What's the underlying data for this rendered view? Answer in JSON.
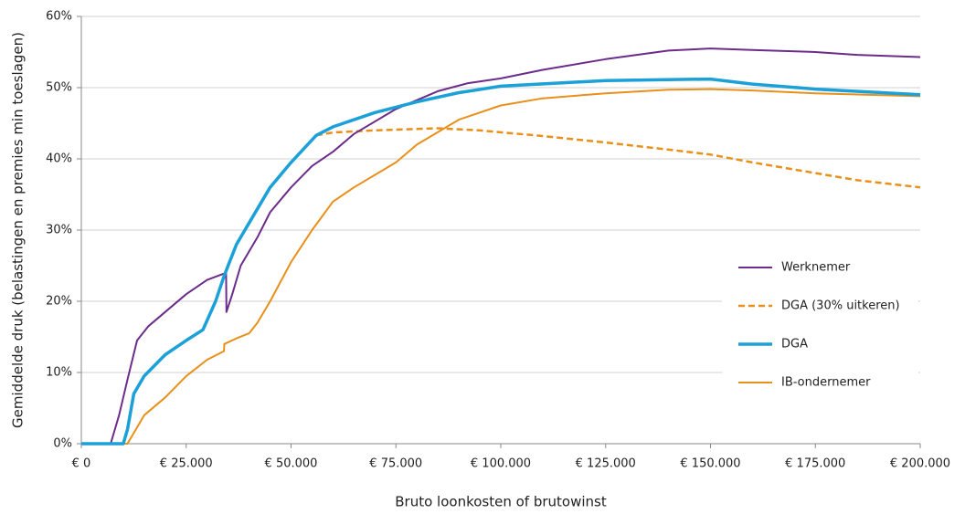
{
  "chart_data": {
    "type": "line",
    "x_label": "Bruto loonkosten of brutowinst",
    "y_label": "Gemiddelde druk (belastingen en premies min toeslagen)",
    "xlim": [
      0,
      200000
    ],
    "ylim": [
      0,
      60
    ],
    "xticks": [
      {
        "value": 0,
        "label": "€ 0"
      },
      {
        "value": 25000,
        "label": "€ 25.000"
      },
      {
        "value": 50000,
        "label": "€ 50.000"
      },
      {
        "value": 75000,
        "label": "€ 75.000"
      },
      {
        "value": 100000,
        "label": "€ 100.000"
      },
      {
        "value": 125000,
        "label": "€ 125.000"
      },
      {
        "value": 150000,
        "label": "€ 150.000"
      },
      {
        "value": 175000,
        "label": "€ 175.000"
      },
      {
        "value": 200000,
        "label": "€ 200.000"
      }
    ],
    "yticks": [
      {
        "value": 0,
        "label": "0%"
      },
      {
        "value": 10,
        "label": "10%"
      },
      {
        "value": 20,
        "label": "20%"
      },
      {
        "value": 30,
        "label": "30%"
      },
      {
        "value": 40,
        "label": "40%"
      },
      {
        "value": 50,
        "label": "50%"
      },
      {
        "value": 60,
        "label": "60%"
      }
    ],
    "grid": true,
    "legend": "right",
    "series": [
      {
        "name": "Werknemer",
        "color": "#6b2c8a",
        "width": 2,
        "dash": false,
        "x": [
          0,
          7000,
          9000,
          11000,
          13300,
          16000,
          20000,
          25000,
          30000,
          34500,
          34600,
          36000,
          38000,
          42000,
          45000,
          50000,
          55000,
          60000,
          65000,
          75000,
          85000,
          92000,
          100000,
          110000,
          125000,
          140000,
          150000,
          160000,
          175000,
          185000,
          200000
        ],
        "values": [
          0,
          0,
          4,
          9,
          14.5,
          16.5,
          18.5,
          21,
          23,
          24,
          18.5,
          21,
          25,
          29,
          32.5,
          36,
          39,
          41,
          43.5,
          47,
          49.5,
          50.6,
          51.3,
          52.5,
          54,
          55.2,
          55.5,
          55.3,
          55,
          54.6,
          54.3
        ]
      },
      {
        "name": "DGA (30% uitkeren)",
        "color": "#e8901a",
        "width": 2.5,
        "dash": true,
        "x": [
          56000,
          60000,
          70000,
          85000,
          95000,
          110000,
          125000,
          140000,
          150000,
          160000,
          175000,
          185000,
          200000
        ],
        "values": [
          43.3,
          43.7,
          44,
          44.3,
          44,
          43.2,
          42.3,
          41.3,
          40.6,
          39.5,
          38,
          37,
          36
        ]
      },
      {
        "name": "DGA",
        "color": "#1ba0d8",
        "width": 3.5,
        "dash": false,
        "x": [
          0,
          10000,
          11000,
          12500,
          15000,
          20000,
          25000,
          29000,
          32000,
          34000,
          35000,
          37000,
          40000,
          45000,
          50000,
          56000,
          60000,
          70000,
          80000,
          90000,
          100000,
          125000,
          150000,
          160000,
          175000,
          200000
        ],
        "values": [
          0,
          0,
          2,
          7,
          9.5,
          12.5,
          14.5,
          16,
          20,
          23.5,
          25,
          28,
          31,
          36,
          39.5,
          43.3,
          44.5,
          46.5,
          48,
          49.3,
          50.2,
          51,
          51.2,
          50.5,
          49.8,
          49
        ]
      },
      {
        "name": "IB-ondernemer",
        "color": "#e8901a",
        "width": 2,
        "dash": false,
        "x": [
          0,
          11000,
          13000,
          15000,
          20000,
          25000,
          30000,
          34000,
          34100,
          37000,
          40000,
          42000,
          45000,
          50000,
          55000,
          60000,
          65000,
          75000,
          80000,
          90000,
          100000,
          110000,
          125000,
          140000,
          150000,
          160000,
          175000,
          200000
        ],
        "values": [
          0,
          0,
          2,
          4,
          6.5,
          9.5,
          11.8,
          13,
          14,
          14.8,
          15.5,
          17,
          20,
          25.5,
          30,
          34,
          36,
          39.5,
          42,
          45.5,
          47.5,
          48.5,
          49.2,
          49.7,
          49.8,
          49.6,
          49.2,
          48.8
        ]
      }
    ]
  }
}
